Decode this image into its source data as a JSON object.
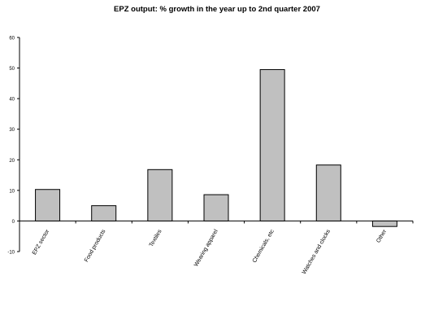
{
  "chart_data": {
    "type": "bar",
    "title": "EPZ output: % growth in the year up to 2nd quarter 2007",
    "categories": [
      "EPZ sector",
      "Food products",
      "Textiles",
      "Wearing apparel",
      "Chemicals, etc",
      "Watches and clocks",
      "Other"
    ],
    "values": [
      10.3,
      5.0,
      16.8,
      8.6,
      49.5,
      18.3,
      -1.8
    ],
    "ylim": [
      -10,
      60
    ],
    "yticks": [
      -10,
      0,
      10,
      20,
      30,
      40,
      50,
      60
    ],
    "xlabel": "",
    "ylabel": "",
    "grid": false,
    "legend": "none",
    "colors": {
      "bar_fill": "#c0c0c0",
      "bar_stroke": "#000000",
      "axis": "#000000"
    }
  }
}
